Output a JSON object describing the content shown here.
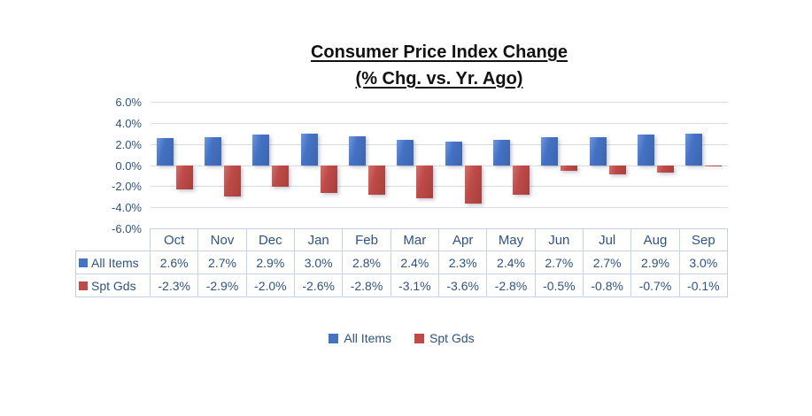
{
  "title": {
    "line1": "Consumer Price Index Change",
    "line2": "(% Chg. vs. Yr. Ago)"
  },
  "colors": {
    "all_items": "#4472c4",
    "spt_gds": "#be4b48",
    "text_navy": "#2f5381",
    "gridline": "#d8dce6"
  },
  "chart_data": {
    "type": "bar",
    "title": "Consumer Price Index Change (% Chg. vs. Yr. Ago)",
    "categories": [
      "Oct",
      "Nov",
      "Dec",
      "Jan",
      "Feb",
      "Mar",
      "Apr",
      "May",
      "Jun",
      "Jul",
      "Aug",
      "Sep"
    ],
    "series": [
      {
        "name": "All Items",
        "color": "#4472c4",
        "values": [
          2.6,
          2.7,
          2.9,
          3.0,
          2.8,
          2.4,
          2.3,
          2.4,
          2.7,
          2.7,
          2.9,
          3.0
        ]
      },
      {
        "name": "Spt Gds",
        "color": "#be4b48",
        "values": [
          -2.3,
          -2.9,
          -2.0,
          -2.6,
          -2.8,
          -3.1,
          -3.6,
          -2.8,
          -0.5,
          -0.8,
          -0.7,
          -0.1
        ]
      }
    ],
    "ylim": [
      -6,
      6
    ],
    "yticks": [
      6,
      4,
      2,
      0,
      -2,
      -4,
      -6
    ],
    "ytick_labels": [
      "6.0%",
      "4.0%",
      "2.0%",
      "0.0%",
      "-2.0%",
      "-4.0%",
      "-6.0%"
    ],
    "grid": true,
    "legend_position": "bottom"
  },
  "table": {
    "columns": [
      "Oct",
      "Nov",
      "Dec",
      "Jan",
      "Feb",
      "Mar",
      "Apr",
      "May",
      "Jun",
      "Jul",
      "Aug",
      "Sep"
    ],
    "rows": [
      {
        "label": "All Items",
        "color": "#4472c4",
        "values": [
          "2.6%",
          "2.7%",
          "2.9%",
          "3.0%",
          "2.8%",
          "2.4%",
          "2.3%",
          "2.4%",
          "2.7%",
          "2.7%",
          "2.9%",
          "3.0%"
        ]
      },
      {
        "label": "Spt Gds",
        "color": "#be4b48",
        "values": [
          "-2.3%",
          "-2.9%",
          "-2.0%",
          "-2.6%",
          "-2.8%",
          "-3.1%",
          "-3.6%",
          "-2.8%",
          "-0.5%",
          "-0.8%",
          "-0.7%",
          "-0.1%"
        ]
      }
    ]
  },
  "legend": {
    "items": [
      {
        "label": "All Items",
        "color": "#4472c4"
      },
      {
        "label": "Spt Gds",
        "color": "#be4b48"
      }
    ]
  }
}
